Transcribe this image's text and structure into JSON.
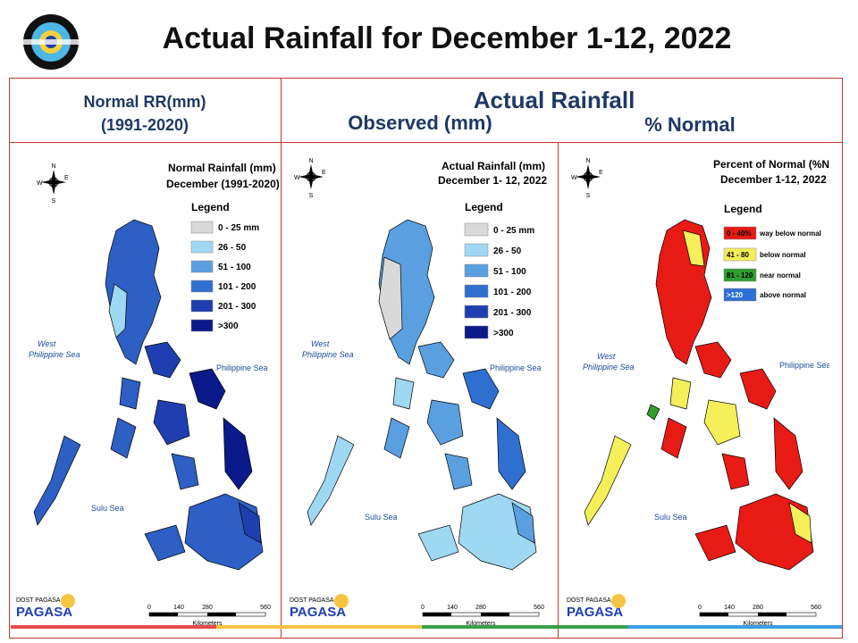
{
  "title": "Actual Rainfall for December 1-12, 2022",
  "header": {
    "normal_line1": "Normal RR(mm)",
    "normal_line2": "(1991-2020)",
    "actual": "Actual Rainfall",
    "observed": "Observed (mm)",
    "percent": "% Normal"
  },
  "panels": [
    {
      "map_title_1": "Normal Rainfall (mm)",
      "map_title_2": "December (1991-2020)",
      "legend_title": "Legend",
      "legend": [
        {
          "label": "0 - 25 mm",
          "color": "#d9d9d9"
        },
        {
          "label": "26 - 50",
          "color": "#9fd8f2"
        },
        {
          "label": "51 - 100",
          "color": "#5aa0e0"
        },
        {
          "label": "101 - 200",
          "color": "#2f6fd0"
        },
        {
          "label": "201 - 300",
          "color": "#1f3fb0"
        },
        {
          "label": ">300",
          "color": "#0a1a8a"
        }
      ],
      "main_color": "#2d5fc4"
    },
    {
      "map_title_1": "Actual Rainfall (mm)",
      "map_title_2": "December 1- 12, 2022",
      "legend_title": "Legend",
      "legend": [
        {
          "label": "0 - 25 mm",
          "color": "#d9d9d9"
        },
        {
          "label": "26 - 50",
          "color": "#9fd8f2"
        },
        {
          "label": "51 - 100",
          "color": "#5aa0e0"
        },
        {
          "label": "101 - 200",
          "color": "#2f6fd0"
        },
        {
          "label": "201 - 300",
          "color": "#1f3fb0"
        },
        {
          "label": ">300",
          "color": "#0a1a8a"
        }
      ],
      "main_color": "#5aa0e0"
    },
    {
      "map_title_1": "Percent of Normal (%N)",
      "map_title_2": "December 1-12, 2022",
      "legend_title": "Legend",
      "legend": [
        {
          "label": "0 - 40%",
          "color": "#e81a14",
          "desc": "way below normal"
        },
        {
          "label": "41 - 80",
          "color": "#f5ef5a",
          "desc": "below normal"
        },
        {
          "label": "81 - 120",
          "color": "#2f9e2f",
          "desc": "near normal"
        },
        {
          "label": ">120",
          "color": "#2e6fd4",
          "desc": "above normal"
        }
      ],
      "main_color": "#e81a14"
    }
  ],
  "map_labels": {
    "west_sea_1": "West",
    "west_sea_2": "Philippine Sea",
    "philippine_sea": "Philippine Sea",
    "sulu_sea": "Sulu Sea",
    "scale_ticks": [
      "0",
      "140",
      "280",
      "560"
    ],
    "scale_unit": "Kilometers",
    "compass": {
      "n": "N",
      "s": "S",
      "e": "E",
      "w": "W"
    },
    "agency_small": "DOST PAGASA",
    "agency": "PAGASA"
  }
}
